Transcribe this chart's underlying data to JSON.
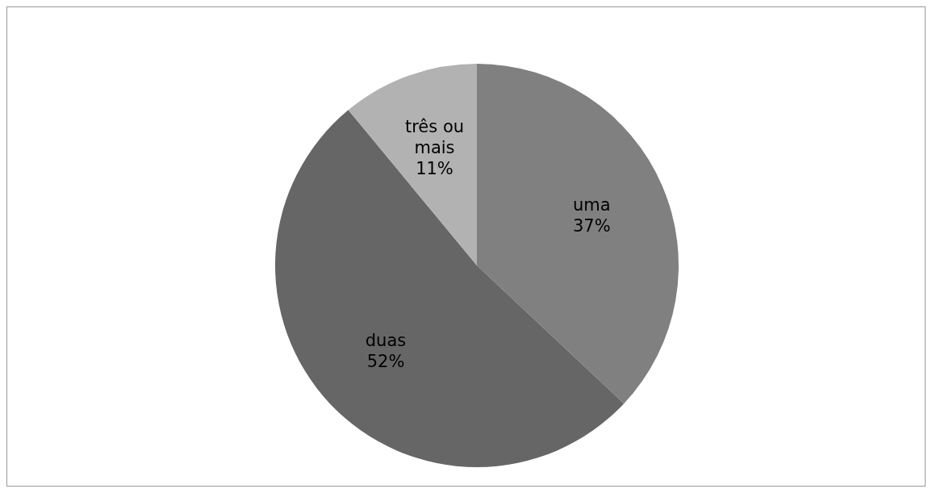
{
  "chart_data": {
    "type": "pie",
    "categories": [
      "uma",
      "duas",
      "três ou mais"
    ],
    "values": [
      37,
      52,
      11
    ],
    "colors": [
      "#808080",
      "#666666",
      "#b2b2b2"
    ],
    "value_labels": [
      "37%",
      "52%",
      "11%"
    ]
  }
}
